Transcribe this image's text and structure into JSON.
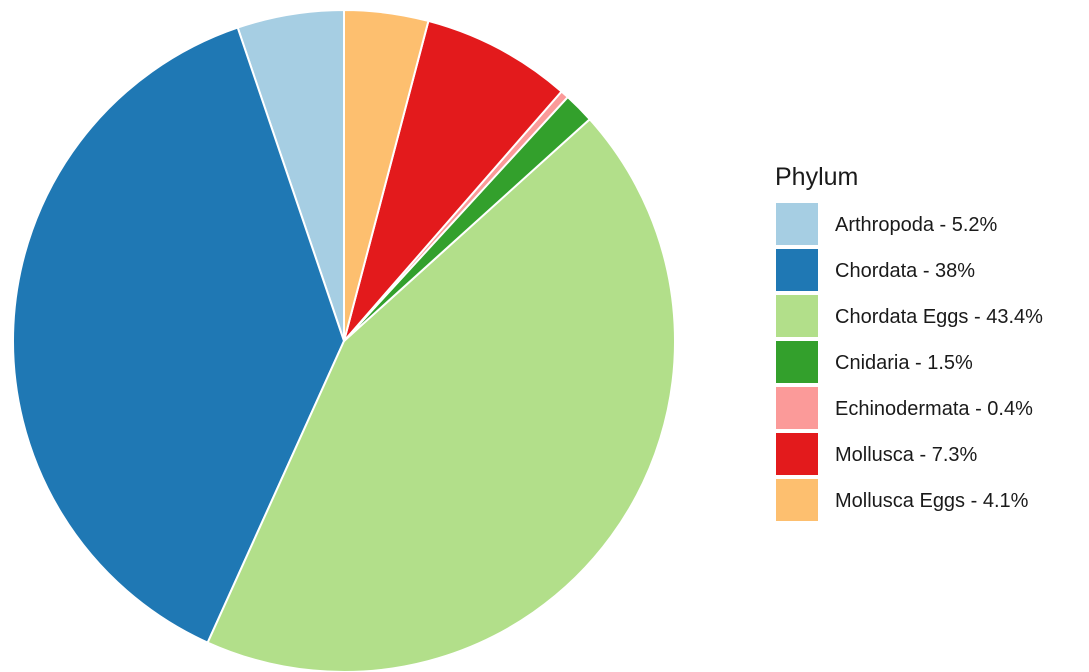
{
  "chart_data": {
    "type": "pie",
    "title": "",
    "legend": {
      "title": "Phylum",
      "placement": "right"
    },
    "slices": [
      {
        "name": "Arthropoda",
        "label": "Arthropoda - 5.2%",
        "value": 5.2,
        "color": "#a6cee3"
      },
      {
        "name": "Chordata",
        "label": "Chordata - 38%",
        "value": 38.0,
        "color": "#1f78b4"
      },
      {
        "name": "Chordata Eggs",
        "label": "Chordata Eggs - 43.4%",
        "value": 43.4,
        "color": "#b2df8a"
      },
      {
        "name": "Cnidaria",
        "label": "Cnidaria - 1.5%",
        "value": 1.5,
        "color": "#33a02c"
      },
      {
        "name": "Echinodermata",
        "label": "Echinodermata - 0.4%",
        "value": 0.4,
        "color": "#fb9a99"
      },
      {
        "name": "Mollusca",
        "label": "Mollusca - 7.3%",
        "value": 7.3,
        "color": "#e31a1c"
      },
      {
        "name": "Mollusca Eggs",
        "label": "Mollusca Eggs - 4.1%",
        "value": 4.1,
        "color": "#fdbf6f"
      }
    ],
    "direction": "counterclockwise",
    "start_angle": "12 o'clock"
  }
}
